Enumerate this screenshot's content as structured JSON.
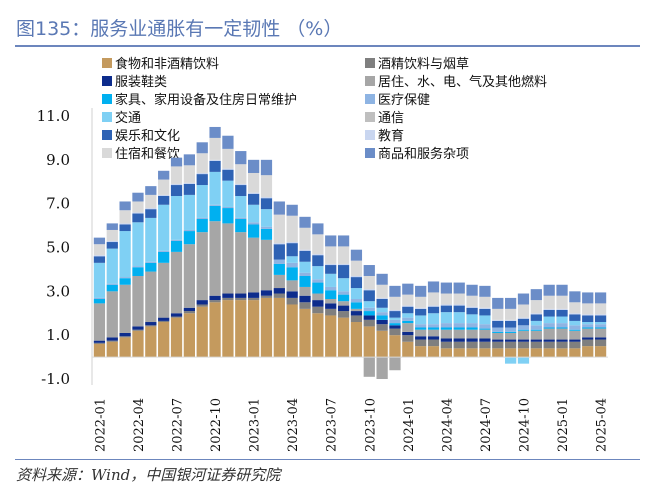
{
  "title": "图135：服务业通胀有一定韧性 （%）",
  "source": "资料来源：Wind，中国银河证券研究院",
  "chart_data": {
    "type": "bar",
    "stacked": true,
    "title": "图135：服务业通胀有一定韧性 （%）",
    "xlabel": "",
    "ylabel": "",
    "ylim": [
      -1.0,
      11.0
    ],
    "yticks": [
      "11.0",
      "9.0",
      "7.0",
      "5.0",
      "3.0",
      "1.0",
      "-1.0"
    ],
    "ytick_values": [
      11,
      9,
      7,
      5,
      3,
      1,
      -1
    ],
    "legend_position": "top",
    "grid": false,
    "categories": [
      "2022-01",
      "2022-02",
      "2022-03",
      "2022-04",
      "2022-05",
      "2022-06",
      "2022-07",
      "2022-08",
      "2022-09",
      "2022-10",
      "2022-11",
      "2022-12",
      "2023-01",
      "2023-02",
      "2023-03",
      "2023-04",
      "2023-05",
      "2023-06",
      "2023-07",
      "2023-08",
      "2023-09",
      "2023-10",
      "2023-11",
      "2023-12",
      "2024-01",
      "2024-02",
      "2024-03",
      "2024-04",
      "2024-05",
      "2024-06",
      "2024-07",
      "2024-08",
      "2024-09",
      "2024-10",
      "2024-11",
      "2024-12",
      "2025-01",
      "2025-02",
      "2025-03",
      "2025-04"
    ],
    "xtick_labels": [
      "2022-01",
      "2022-04",
      "2022-07",
      "2022-10",
      "2023-01",
      "2023-04",
      "2023-07",
      "2023-10",
      "2024-01",
      "2024-04",
      "2024-07",
      "2024-10",
      "2025-01",
      "2025-04"
    ],
    "series": [
      {
        "name": "食物和非酒精饮料",
        "color": "#C49A5E",
        "values": [
          0.6,
          0.7,
          0.9,
          1.2,
          1.4,
          1.6,
          1.8,
          2.0,
          2.3,
          2.5,
          2.6,
          2.6,
          2.6,
          2.7,
          2.7,
          2.4,
          2.2,
          2.0,
          1.9,
          1.8,
          1.6,
          1.4,
          1.2,
          1.0,
          0.7,
          0.5,
          0.5,
          0.4,
          0.4,
          0.4,
          0.4,
          0.4,
          0.4,
          0.4,
          0.4,
          0.4,
          0.4,
          0.4,
          0.5,
          0.5
        ]
      },
      {
        "name": "酒精饮料与烟草",
        "color": "#7F7F7F",
        "values": [
          0.05,
          0.05,
          0.05,
          0.05,
          0.05,
          0.05,
          0.05,
          0.1,
          0.1,
          0.1,
          0.1,
          0.1,
          0.1,
          0.1,
          0.2,
          0.3,
          0.3,
          0.3,
          0.3,
          0.3,
          0.3,
          0.3,
          0.3,
          0.3,
          0.3,
          0.3,
          0.3,
          0.3,
          0.3,
          0.3,
          0.3,
          0.3,
          0.3,
          0.3,
          0.3,
          0.3,
          0.3,
          0.3,
          0.3,
          0.3
        ]
      },
      {
        "name": "服装鞋类",
        "color": "#0D2C8C",
        "values": [
          0.1,
          0.15,
          0.15,
          0.15,
          0.15,
          0.15,
          0.15,
          0.15,
          0.2,
          0.2,
          0.2,
          0.2,
          0.25,
          0.25,
          0.25,
          0.3,
          0.3,
          0.3,
          0.25,
          0.25,
          0.2,
          0.2,
          0.2,
          0.15,
          0.15,
          0.15,
          0.15,
          0.15,
          0.15,
          0.15,
          0.15,
          0.1,
          0.1,
          0.1,
          0.1,
          0.1,
          0.1,
          0.1,
          0.1,
          0.1
        ]
      },
      {
        "name": "居住、水、电、气及其他燃料",
        "color": "#A6A6A6",
        "values": [
          1.7,
          2.1,
          2.2,
          2.3,
          2.3,
          2.5,
          2.8,
          2.9,
          3.1,
          3.4,
          3.2,
          2.8,
          2.5,
          2.3,
          0.6,
          0.5,
          0.4,
          0.3,
          0.2,
          0.2,
          0.1,
          -0.9,
          -1.0,
          -0.6,
          0.4,
          0.3,
          0.3,
          0.4,
          0.4,
          0.4,
          0.4,
          0.3,
          0.3,
          0.4,
          0.4,
          0.5,
          0.5,
          0.4,
          0.4,
          0.4
        ]
      },
      {
        "name": "家具、家用设备及住房日常维护",
        "color": "#00B0F0",
        "values": [
          0.2,
          0.3,
          0.3,
          0.4,
          0.4,
          0.5,
          0.5,
          0.6,
          0.6,
          0.7,
          0.7,
          0.6,
          0.6,
          0.5,
          0.5,
          0.6,
          0.5,
          0.5,
          0.4,
          0.3,
          0.3,
          0.2,
          0.2,
          0.1,
          0.1,
          0.1,
          0.1,
          0.1,
          0.1,
          0.1,
          0.05,
          0.05,
          0.05,
          0.05,
          0.05,
          0.05,
          0.05,
          0.05,
          0.05,
          0.05
        ]
      },
      {
        "name": "医疗保健",
        "color": "#8EB4E3",
        "values": [
          0.05,
          0.05,
          0.05,
          0.05,
          0.05,
          0.05,
          0.05,
          0.05,
          0.05,
          0.05,
          0.05,
          0.05,
          0.1,
          0.1,
          0.2,
          0.2,
          0.15,
          0.15,
          0.15,
          0.15,
          0.15,
          0.15,
          0.15,
          0.15,
          0.15,
          0.15,
          0.15,
          0.2,
          0.2,
          0.2,
          0.2,
          0.2,
          0.2,
          0.2,
          0.2,
          0.2,
          0.2,
          0.2,
          0.15,
          0.15
        ]
      },
      {
        "name": "交通",
        "color": "#7FD0F4",
        "values": [
          1.6,
          1.6,
          2.1,
          2.0,
          2.0,
          2.1,
          2.0,
          1.6,
          1.5,
          1.5,
          1.2,
          1.0,
          0.8,
          0.8,
          0.0,
          0.3,
          0.5,
          0.6,
          0.6,
          0.6,
          0.5,
          0.3,
          0.2,
          0.1,
          0.2,
          0.4,
          0.5,
          0.5,
          0.5,
          0.4,
          0.4,
          0.0,
          -0.3,
          -0.3,
          0.2,
          0.3,
          0.3,
          0.2,
          0.1,
          0.1
        ]
      },
      {
        "name": "通信",
        "color": "#BFBFBF",
        "values": [
          0.0,
          0.0,
          0.0,
          0.0,
          0.0,
          0.0,
          0.0,
          0.0,
          0.0,
          0.0,
          0.0,
          0.0,
          0.0,
          0.0,
          0.0,
          0.0,
          0.0,
          0.0,
          0.0,
          0.0,
          0.0,
          0.0,
          0.0,
          0.0,
          0.0,
          0.0,
          0.0,
          0.0,
          0.0,
          0.0,
          0.0,
          0.0,
          0.0,
          0.0,
          0.0,
          0.0,
          0.0,
          0.0,
          0.0,
          0.0
        ]
      },
      {
        "name": "娱乐和文化",
        "color": "#2E62B4",
        "values": [
          0.3,
          0.3,
          0.3,
          0.4,
          0.4,
          0.4,
          0.5,
          0.5,
          0.5,
          0.5,
          0.5,
          0.5,
          0.5,
          0.5,
          0.7,
          0.6,
          0.5,
          0.5,
          0.4,
          0.6,
          0.5,
          0.5,
          0.4,
          0.3,
          0.3,
          0.3,
          0.3,
          0.3,
          0.3,
          0.3,
          0.3,
          0.3,
          0.3,
          0.3,
          0.3,
          0.3,
          0.3,
          0.3,
          0.3,
          0.3
        ]
      },
      {
        "name": "教育",
        "color": "#C9D6F0",
        "values": [
          0.05,
          0.05,
          0.05,
          0.05,
          0.05,
          0.05,
          0.05,
          0.05,
          0.05,
          0.05,
          0.05,
          0.05,
          0.05,
          0.05,
          0.05,
          0.05,
          0.05,
          0.05,
          0.05,
          0.05,
          0.05,
          0.05,
          0.05,
          0.05,
          0.05,
          0.05,
          0.05,
          0.05,
          0.05,
          0.05,
          0.05,
          0.05,
          0.05,
          0.05,
          0.05,
          0.05,
          0.05,
          0.05,
          0.05,
          0.05
        ]
      },
      {
        "name": "住宿和餐饮",
        "color": "#D9D9D9",
        "values": [
          0.5,
          0.5,
          0.6,
          0.5,
          0.6,
          0.7,
          0.8,
          0.8,
          0.9,
          1.0,
          0.9,
          0.9,
          0.9,
          1.0,
          1.3,
          1.2,
          1.0,
          0.9,
          0.8,
          0.8,
          0.7,
          0.6,
          0.6,
          0.6,
          0.5,
          0.5,
          0.6,
          0.5,
          0.5,
          0.5,
          0.5,
          0.5,
          0.5,
          0.6,
          0.6,
          0.6,
          0.6,
          0.5,
          0.5,
          0.5
        ]
      },
      {
        "name": "商品和服务杂项",
        "color": "#6B8DC8",
        "values": [
          0.3,
          0.3,
          0.4,
          0.4,
          0.4,
          0.4,
          0.4,
          0.5,
          0.5,
          0.5,
          0.6,
          0.6,
          0.6,
          0.7,
          0.6,
          0.5,
          0.5,
          0.5,
          0.5,
          0.5,
          0.5,
          0.5,
          0.5,
          0.5,
          0.5,
          0.5,
          0.5,
          0.5,
          0.5,
          0.5,
          0.5,
          0.5,
          0.5,
          0.5,
          0.5,
          0.5,
          0.5,
          0.5,
          0.5,
          0.5
        ]
      }
    ]
  }
}
